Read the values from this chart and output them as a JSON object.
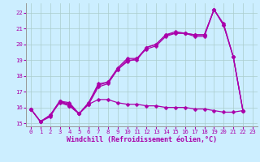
{
  "xlabel": "Windchill (Refroidissement éolien,°C)",
  "background_color": "#cceeff",
  "grid_color": "#aacccc",
  "line_color": "#aa00aa",
  "xlim": [
    -0.5,
    23.5
  ],
  "ylim": [
    14.8,
    22.6
  ],
  "yticks": [
    15,
    16,
    17,
    18,
    19,
    20,
    21,
    22
  ],
  "xtick_labels": [
    "0",
    "1",
    "2",
    "3",
    "4",
    "5",
    "6",
    "7",
    "8",
    "9",
    "10",
    "11",
    "12",
    "13",
    "14",
    "15",
    "16",
    "17",
    "18",
    "19",
    "20",
    "21",
    "22",
    "23"
  ],
  "series": [
    [
      15.9,
      15.1,
      15.4,
      16.4,
      16.2,
      15.6,
      16.3,
      17.5,
      17.6,
      18.5,
      19.1,
      19.1,
      19.8,
      20.0,
      20.6,
      20.7,
      20.7,
      20.6,
      20.6,
      22.2,
      21.2,
      19.2,
      15.8
    ],
    [
      15.9,
      15.1,
      15.5,
      16.4,
      16.1,
      15.6,
      16.2,
      17.3,
      17.5,
      18.4,
      18.9,
      19.1,
      19.7,
      19.9,
      20.5,
      20.7,
      20.7,
      20.6,
      20.6,
      22.2,
      21.2,
      19.2,
      15.8
    ],
    [
      15.9,
      15.1,
      15.5,
      16.3,
      16.1,
      15.6,
      16.2,
      16.5,
      16.5,
      16.3,
      16.2,
      16.2,
      16.1,
      16.1,
      16.0,
      16.0,
      16.0,
      15.9,
      15.9,
      15.8,
      15.7,
      15.7,
      15.8
    ],
    [
      15.9,
      15.1,
      15.5,
      16.4,
      16.3,
      15.6,
      16.3,
      17.4,
      17.6,
      18.4,
      19.0,
      19.0,
      19.8,
      20.0,
      20.6,
      20.8,
      20.7,
      20.5,
      20.5,
      22.2,
      21.3,
      19.2,
      15.8
    ]
  ],
  "tick_fontsize": 5.2,
  "xlabel_fontsize": 6.0,
  "marker_size": 2.5,
  "line_width": 0.9
}
